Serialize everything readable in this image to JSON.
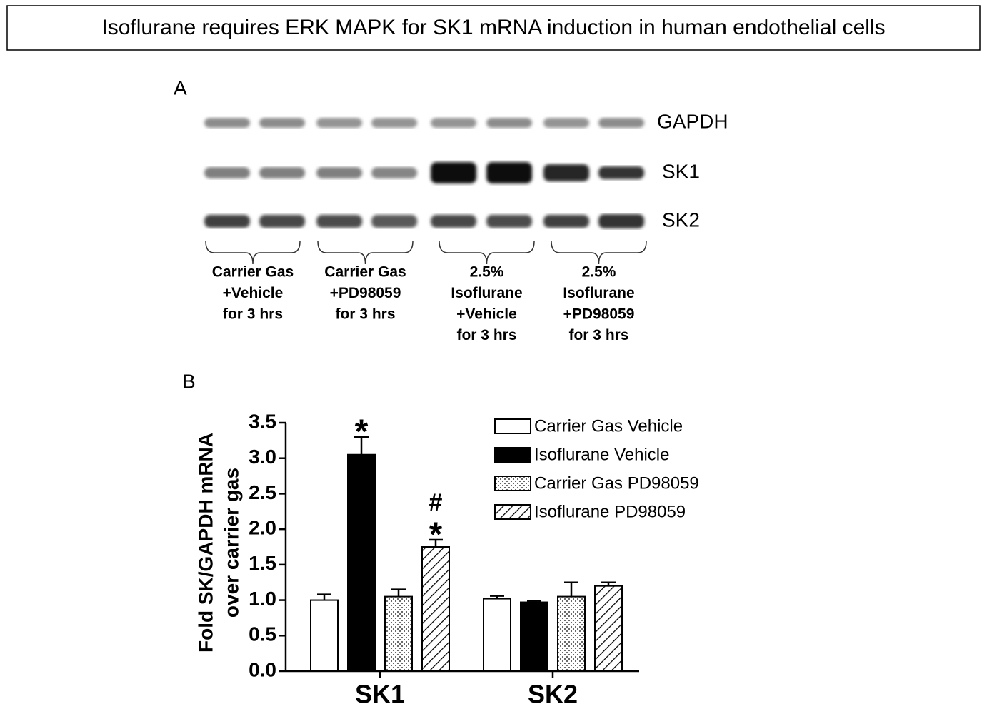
{
  "title": "Isoflurane requires ERK MAPK for SK1 mRNA induction in human endothelial cells",
  "panel_a": {
    "label": "A",
    "bands": [
      "GAPDH",
      "SK1",
      "SK2"
    ],
    "groups": [
      [
        "Carrier Gas",
        "+Vehicle",
        "for 3 hrs"
      ],
      [
        "Carrier Gas",
        "+PD98059",
        "for 3 hrs"
      ],
      [
        "2.5%",
        "Isoflurane",
        "+Vehicle",
        "for 3 hrs"
      ],
      [
        "2.5%",
        "Isoflurane",
        "+PD98059",
        "for 3 hrs"
      ]
    ]
  },
  "chart_data": {
    "type": "bar",
    "panel_label": "B",
    "ylabel": [
      "Fold SK/GAPDH mRNA",
      "over carrier gas"
    ],
    "categories": [
      "SK1",
      "SK2"
    ],
    "ylim": [
      0,
      3.5
    ],
    "yticks": [
      {
        "value": 0,
        "label": "0.0"
      },
      0.5,
      {
        "value": 1,
        "label": "1.0"
      },
      1.5,
      {
        "value": 2,
        "label": "2.0"
      },
      2.5,
      {
        "value": 3,
        "label": "3.0"
      },
      3.5
    ],
    "series": [
      {
        "name": "Carrier Gas Vehicle",
        "color": "#ffffff",
        "pattern": "none",
        "values": [
          1.0,
          1.02
        ],
        "errors": [
          0.08,
          0.04
        ]
      },
      {
        "name": "Isoflurane Vehicle",
        "color": "#000000",
        "pattern": "solid",
        "values": [
          3.05,
          0.97
        ],
        "errors": [
          0.25,
          0.02
        ],
        "annotations": [
          [
            "*"
          ],
          []
        ]
      },
      {
        "name": "Carrier Gas PD98059",
        "color": "#ffffff",
        "pattern": "dots",
        "values": [
          1.05,
          1.05
        ],
        "errors": [
          0.1,
          0.2
        ]
      },
      {
        "name": "Isoflurane PD98059",
        "color": "#ffffff",
        "pattern": "hatch",
        "values": [
          1.75,
          1.2
        ],
        "errors": [
          0.1,
          0.05
        ],
        "annotations": [
          [
            "#",
            "*"
          ],
          []
        ]
      }
    ]
  }
}
